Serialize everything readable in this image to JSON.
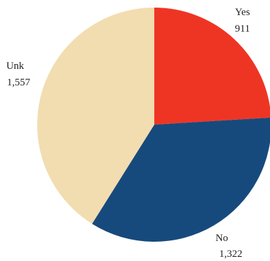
{
  "chart_data": {
    "type": "pie",
    "slices": [
      {
        "label": "Yes",
        "value": 911,
        "value_text": "911",
        "color": "#ee3524"
      },
      {
        "label": "No",
        "value": 1322,
        "value_text": "1,322",
        "color": "#174a7c"
      },
      {
        "label": "Unk",
        "value": 1557,
        "value_text": "1,557",
        "color": "#f2ddb0"
      }
    ],
    "start": "top",
    "direction": "clockwise"
  }
}
